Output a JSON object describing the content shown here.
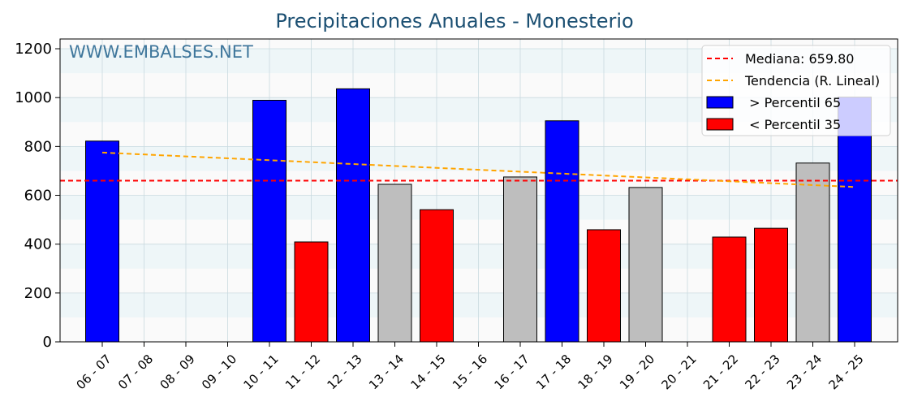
{
  "chart_data": {
    "type": "bar",
    "title": "Precipitaciones Anuales - Monesterio",
    "watermark": "WWW.EMBALSES.NET",
    "xlabel": "",
    "ylabel": "",
    "ylim": [
      0,
      1240
    ],
    "yticks": [
      0,
      200,
      400,
      600,
      800,
      1000,
      1200
    ],
    "grid": true,
    "legend_position": "top-right",
    "categories": [
      "06 - 07",
      "07 - 08",
      "08 - 09",
      "09 - 10",
      "10 - 11",
      "11 - 12",
      "12 - 13",
      "13 - 14",
      "14 - 15",
      "15 - 16",
      "16 - 17",
      "17 - 18",
      "18 - 19",
      "19 - 20",
      "20 - 21",
      "21 - 22",
      "22 - 23",
      "23 - 24",
      "24 - 25"
    ],
    "values": [
      822,
      null,
      null,
      null,
      989,
      409,
      1036,
      645,
      541,
      null,
      675,
      905,
      459,
      632,
      null,
      429,
      465,
      732,
      1002
    ],
    "bar_class": [
      "high",
      null,
      null,
      null,
      "high",
      "low",
      "high",
      "mid",
      "low",
      null,
      "mid",
      "high",
      "low",
      "mid",
      null,
      "low",
      "low",
      "mid",
      "high"
    ],
    "median": {
      "label": "Mediana: 659.80",
      "value": 659.8,
      "color": "#ff0000"
    },
    "trend": {
      "label": "Tendencia (R. Lineal)",
      "start": 775,
      "end": 634,
      "color": "#ffa500"
    },
    "legend": [
      {
        "label": "Mediana: 659.80",
        "kind": "line",
        "color": "#ff0000"
      },
      {
        "label": "Tendencia (R. Lineal)",
        "kind": "line",
        "color": "#ffa500"
      },
      {
        "label": " > Percentil 65",
        "kind": "box",
        "color": "#0000ff"
      },
      {
        "label": " < Percentil 35",
        "kind": "box",
        "color": "#ff0000"
      }
    ],
    "colors": {
      "high": "#0000ff",
      "low": "#ff0000",
      "mid": "#bebebe",
      "title": "#1b4f72",
      "watermark": "#1f5f8b"
    }
  }
}
